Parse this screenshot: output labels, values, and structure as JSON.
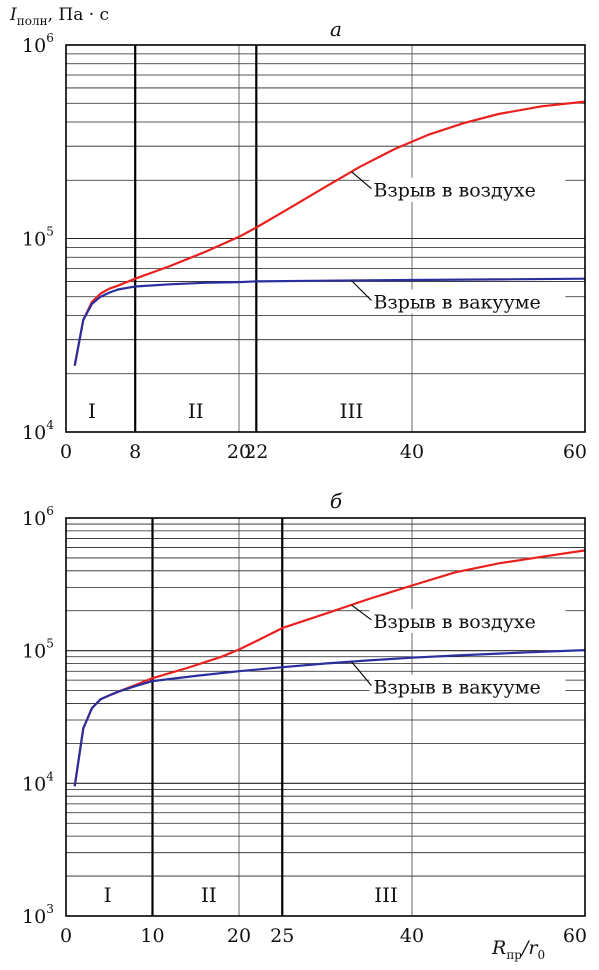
{
  "y_axis_label": {
    "symbol": "I",
    "subscript": "полн",
    "units": ", Па · с"
  },
  "x_axis_label": {
    "symbol": "R",
    "subscript": "пр",
    "rest": "/r",
    "rest_subscript": "0"
  },
  "colors": {
    "air": "#e8211f",
    "vacuum": "#2b2f9e",
    "grid": "#222222",
    "boundary": "#000000"
  },
  "chart_data": [
    {
      "type": "line",
      "title": "а",
      "xscale": "linear",
      "yscale": "log",
      "xlim": [
        0,
        60
      ],
      "ylim": [
        10000,
        1000000
      ],
      "x_ticks": [
        0,
        8,
        20,
        22,
        40,
        60
      ],
      "x_tick_labels": [
        "0",
        "8",
        "20",
        "22",
        "40",
        "60"
      ],
      "minor_vertical_gridlines": [
        20,
        40
      ],
      "y_ticks": [
        10000,
        100000,
        1000000
      ],
      "y_tick_labels": [
        {
          "base": "10",
          "exp": "4"
        },
        {
          "base": "10",
          "exp": "5"
        },
        {
          "base": "10",
          "exp": "6"
        }
      ],
      "grid": "horizontal log gridlines at every 1–9 × 10^n",
      "boundaries": [
        8,
        22
      ],
      "regions": [
        {
          "label": "I",
          "x": 3
        },
        {
          "label": "II",
          "x": 15
        },
        {
          "label": "III",
          "x": 33
        }
      ],
      "series": [
        {
          "name": "Взрыв в воздухе",
          "color_key": "air",
          "x": [
            1,
            2,
            3,
            4,
            5,
            6,
            8,
            12,
            16,
            20,
            22,
            26,
            30,
            34,
            38,
            42,
            46,
            50,
            55,
            60
          ],
          "y": [
            22000,
            38000,
            47000,
            52000,
            55000,
            57000,
            62000,
            72000,
            85000,
            102000,
            114000,
            145000,
            185000,
            235000,
            290000,
            345000,
            395000,
            440000,
            482000,
            510000
          ]
        },
        {
          "name": "Взрыв в вакууме",
          "color_key": "vacuum",
          "x": [
            1,
            2,
            3,
            4,
            5,
            6,
            8,
            12,
            16,
            20,
            22,
            30,
            40,
            50,
            60
          ],
          "y": [
            22000,
            38000,
            46000,
            50000,
            52500,
            54500,
            56500,
            58000,
            59000,
            59500,
            60000,
            60500,
            61000,
            61500,
            62000
          ]
        }
      ],
      "annotations": [
        {
          "text": "Взрыв в воздухе",
          "series_index": 0,
          "point_x": 33
        },
        {
          "text": "Взрыв в вакууме",
          "series_index": 1,
          "point_x": 33
        }
      ]
    },
    {
      "type": "line",
      "title": "б",
      "xscale": "linear",
      "yscale": "log",
      "xlim": [
        0,
        60
      ],
      "ylim": [
        1000,
        1000000
      ],
      "x_ticks": [
        0,
        10,
        20,
        25,
        40,
        60
      ],
      "x_tick_labels": [
        "0",
        "10",
        "20",
        "25",
        "40",
        "60"
      ],
      "minor_vertical_gridlines": [
        20,
        40
      ],
      "y_ticks": [
        1000,
        10000,
        100000,
        1000000
      ],
      "y_tick_labels": [
        {
          "base": "10",
          "exp": "3"
        },
        {
          "base": "10",
          "exp": "4"
        },
        {
          "base": "10",
          "exp": "5"
        },
        {
          "base": "10",
          "exp": "6"
        }
      ],
      "grid": "horizontal log gridlines at every 1–9 × 10^n",
      "boundaries": [
        10,
        25
      ],
      "regions": [
        {
          "label": "I",
          "x": 4.8
        },
        {
          "label": "II",
          "x": 16.5
        },
        {
          "label": "III",
          "x": 37
        }
      ],
      "series": [
        {
          "name": "Взрыв в воздухе",
          "color_key": "air",
          "x": [
            1,
            2,
            3,
            4,
            5,
            6,
            8,
            10,
            14,
            18,
            20,
            22,
            25,
            30,
            35,
            40,
            45,
            50,
            55,
            60
          ],
          "y": [
            9500,
            26000,
            37000,
            43000,
            46000,
            49000,
            55000,
            62000,
            74000,
            90000,
            102000,
            118000,
            148000,
            190000,
            245000,
            310000,
            390000,
            455000,
            510000,
            570000
          ]
        },
        {
          "name": "Взрыв в вакууме",
          "color_key": "vacuum",
          "x": [
            1,
            2,
            3,
            4,
            5,
            6,
            8,
            10,
            15,
            20,
            25,
            30,
            35,
            40,
            45,
            50,
            55,
            60
          ],
          "y": [
            9500,
            26000,
            37000,
            43000,
            46000,
            49000,
            54000,
            59000,
            64500,
            70000,
            75000,
            80000,
            84500,
            88500,
            92000,
            95000,
            98000,
            101000
          ]
        }
      ],
      "annotations": [
        {
          "text": "Взрыв в воздухе",
          "series_index": 0,
          "point_x": 33
        },
        {
          "text": "Взрыв в вакууме",
          "series_index": 1,
          "point_x": 33
        }
      ]
    }
  ]
}
